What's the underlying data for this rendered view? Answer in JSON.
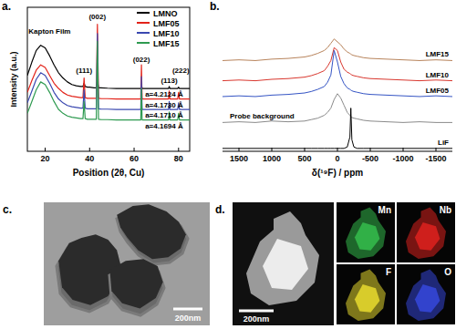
{
  "chart_data": [
    {
      "type": "line",
      "title": "a.",
      "x_label": "Position (2θ, Cu)",
      "y_label": "Intensity (a.u.)",
      "x": [
        12,
        14,
        16,
        18,
        20,
        22,
        24,
        26,
        28,
        30,
        32,
        34,
        36,
        37,
        37.5,
        38,
        39,
        40,
        42,
        43,
        43.5,
        44,
        45,
        48,
        52,
        56,
        60,
        62,
        63,
        63.3,
        63.6,
        64,
        66,
        70,
        74,
        75.5,
        75.8,
        76.1,
        77,
        79,
        79.6,
        80,
        80.4,
        82,
        85
      ],
      "series": [
        {
          "name": "LMNO",
          "color": "#000000",
          "values": [
            58,
            68,
            77,
            81,
            79,
            73,
            66,
            60,
            56,
            53,
            51,
            50,
            49.5,
            49.5,
            52,
            49.5,
            49,
            49,
            48.5,
            48.5,
            54,
            48.5,
            48.5,
            48.2,
            48,
            48,
            48,
            48,
            48,
            51,
            48,
            48,
            48,
            48,
            48,
            48,
            49.5,
            48,
            48,
            48,
            48,
            49,
            48,
            48,
            48
          ]
        },
        {
          "name": "LMF05",
          "color": "#e2231a",
          "values": [
            45,
            54,
            62,
            66,
            64,
            58,
            52,
            48,
            45,
            43,
            42,
            41.5,
            41,
            41,
            56,
            41,
            40.5,
            40.5,
            40.5,
            40.5,
            97,
            40.5,
            40.3,
            40.2,
            40,
            40,
            40,
            40,
            40,
            66,
            40,
            40,
            40,
            40,
            40,
            40,
            46,
            40,
            40,
            40,
            40,
            45,
            40,
            40,
            40
          ]
        },
        {
          "name": "LMF10",
          "color": "#3a48b0",
          "values": [
            37,
            46,
            55,
            60,
            58,
            52,
            45,
            40,
            37,
            35,
            34,
            33.5,
            33,
            33,
            47,
            33,
            32.5,
            32.5,
            32.5,
            32.5,
            90,
            32.5,
            32.3,
            32.2,
            32,
            32,
            32,
            32,
            32,
            57,
            32,
            32,
            32,
            32,
            32,
            32,
            38,
            32,
            32,
            32,
            32,
            37,
            32,
            32,
            32
          ]
        },
        {
          "name": "LMF15",
          "color": "#2e9a50",
          "values": [
            29,
            38,
            47,
            53,
            51,
            45,
            38,
            32,
            29,
            27,
            26,
            25.5,
            25,
            25,
            38,
            25,
            24.5,
            24.5,
            24.5,
            24.5,
            84,
            24.5,
            24.3,
            24.2,
            24,
            24,
            24,
            24,
            24,
            48,
            24,
            24,
            24,
            24,
            24,
            24,
            30,
            24,
            24,
            24,
            24,
            29,
            24,
            24,
            24
          ]
        }
      ],
      "xlim": [
        12,
        85
      ],
      "xticks": [
        20,
        40,
        60,
        80
      ],
      "ylim": [
        0,
        110
      ],
      "tick_labels": "x",
      "legend": "upper right",
      "annotations": [
        {
          "text": "Kapton Film",
          "x": 22,
          "y": 90
        },
        {
          "text": "(111)",
          "x": 37.5,
          "y": 60
        },
        {
          "text": "(002)",
          "x": 43.5,
          "y": 101
        },
        {
          "text": "(022)",
          "x": 63.3,
          "y": 68
        },
        {
          "text": "(113)",
          "x": 75.8,
          "y": 52
        },
        {
          "text": "(222)",
          "x": 81,
          "y": 60
        },
        {
          "text": "a=4.2124 Å",
          "x": 73.5,
          "y": 41.5
        },
        {
          "text": "a=4.1730 Å",
          "x": 73.5,
          "y": 33.5
        },
        {
          "text": "a=4.1710 Å",
          "x": 73.5,
          "y": 25.5
        },
        {
          "text": "a=4.1694 Å",
          "x": 73.5,
          "y": 17.5
        }
      ]
    },
    {
      "type": "line",
      "title": "b.",
      "x_label": "δ(¹⁹F) / ppm",
      "x": [
        1750,
        1500,
        1250,
        1000,
        750,
        500,
        400,
        300,
        200,
        150,
        100,
        50,
        0,
        -50,
        -100,
        -150,
        -190,
        -204,
        -220,
        -250,
        -300,
        -400,
        -500,
        -750,
        -1000,
        -1250,
        -1500,
        -1750
      ],
      "series": [
        {
          "name": "LMF15",
          "color": "#b8845c",
          "values": [
            63,
            63.5,
            63,
            64,
            64.5,
            65.5,
            66.5,
            68,
            70,
            72,
            75,
            78,
            76,
            74,
            71,
            69,
            68,
            67.5,
            67,
            66.5,
            66,
            65,
            64.5,
            64,
            63.5,
            63,
            63.5,
            63
          ]
        },
        {
          "name": "LMF10",
          "color": "#d9372e",
          "values": [
            49,
            49.5,
            49,
            50,
            50.5,
            51.5,
            52.5,
            54,
            56,
            59,
            63,
            72,
            70,
            62,
            57,
            55,
            54,
            53.5,
            53,
            52.5,
            52,
            51,
            50.5,
            50,
            49.5,
            49,
            49.5,
            49
          ]
        },
        {
          "name": "LMF05",
          "color": "#3454c4",
          "values": [
            38,
            38.5,
            38,
            39,
            39.5,
            40.5,
            41.5,
            43,
            45,
            48,
            53,
            70,
            62,
            52,
            47,
            44,
            43,
            42.5,
            42,
            41.5,
            41,
            40,
            39.5,
            39,
            38.5,
            38,
            38.5,
            38
          ]
        },
        {
          "name": "Probe background",
          "color": "#8a8a8a",
          "values": [
            20,
            20.5,
            20,
            21,
            20.5,
            21,
            22,
            23,
            25,
            27,
            30,
            36,
            40,
            37,
            32,
            27,
            25,
            24,
            23.5,
            23,
            22.5,
            21.5,
            21,
            20.5,
            20,
            20.5,
            20,
            20
          ]
        },
        {
          "name": "LiF",
          "color": "#000000",
          "values": [
            2,
            2,
            2,
            2,
            2,
            2,
            2,
            2,
            2,
            2,
            2,
            2,
            2,
            2,
            2,
            3,
            10,
            30,
            8,
            3,
            2,
            2,
            2,
            2,
            2,
            2,
            2,
            2
          ]
        }
      ],
      "xlim": [
        1750,
        -1750
      ],
      "xticks": [
        1500,
        1000,
        500,
        0,
        -500,
        -1000,
        -1500
      ],
      "ylim": [
        0,
        100
      ],
      "tick_labels": "x"
    }
  ],
  "images": [
    {
      "label": "c.",
      "scale_bar": "200nm"
    },
    {
      "label": "d.",
      "scale_bar": "200nm",
      "maps": [
        {
          "element": "Mn",
          "color": "#33b84a"
        },
        {
          "element": "Nb",
          "color": "#d8201e"
        },
        {
          "element": "F",
          "color": "#e2d52e"
        },
        {
          "element": "O",
          "color": "#3446d6"
        }
      ]
    }
  ]
}
